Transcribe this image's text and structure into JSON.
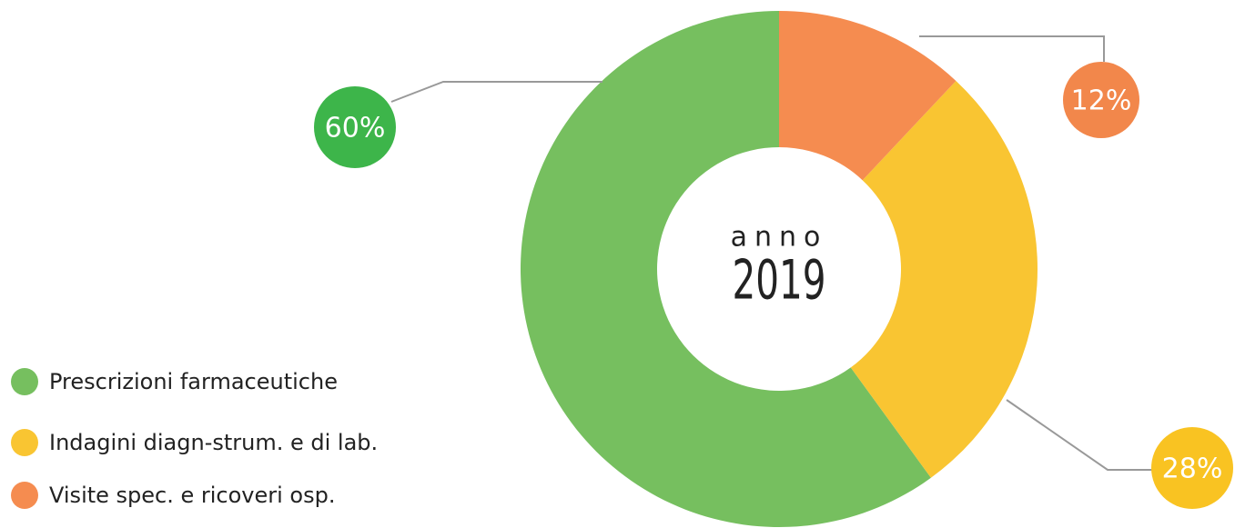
{
  "chart_data": {
    "type": "donut",
    "categories": [
      "Prescrizioni farmaceutiche",
      "Indagini diagn-strum. e di lab.",
      "Visite spec. e ricoveri osp."
    ],
    "values": [
      60,
      28,
      12
    ],
    "value_labels": [
      "60%",
      "28%",
      "12%"
    ],
    "colors": [
      "#76bf5f",
      "#f9c532",
      "#f58c50"
    ],
    "label_colors": [
      "#3db54a",
      "#f9c322",
      "#f2874b"
    ],
    "center_top": "anno",
    "center_bottom": "2019",
    "legend": "bottom-left"
  }
}
